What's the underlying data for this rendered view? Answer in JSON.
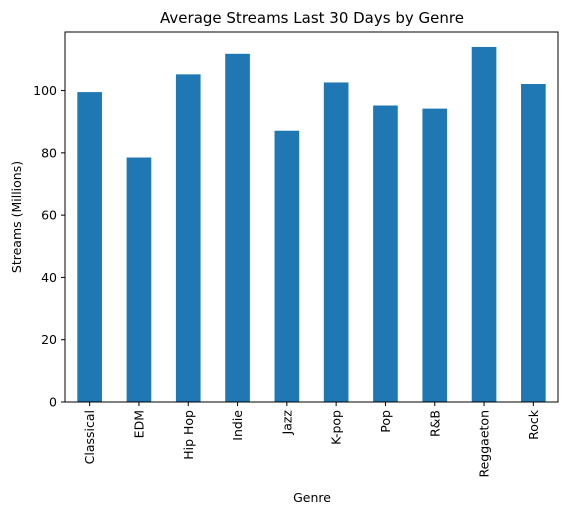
{
  "chart_data": {
    "type": "bar",
    "title": "Average Streams Last 30 Days by Genre",
    "xlabel": "Genre",
    "ylabel": "Streams (Millions)",
    "categories": [
      "Classical",
      "EDM",
      "Hip Hop",
      "Indie",
      "Jazz",
      "K-pop",
      "Pop",
      "R&B",
      "Reggaeton",
      "Rock"
    ],
    "values": [
      99.5,
      78.5,
      105.2,
      111.8,
      87.1,
      102.6,
      95.2,
      94.2,
      114.0,
      102.1
    ],
    "ylim": [
      0,
      118.8
    ],
    "yticks": [
      0,
      20,
      40,
      60,
      80,
      100
    ],
    "grid": false,
    "legend": "none",
    "bar_color": "#1f77b4"
  }
}
